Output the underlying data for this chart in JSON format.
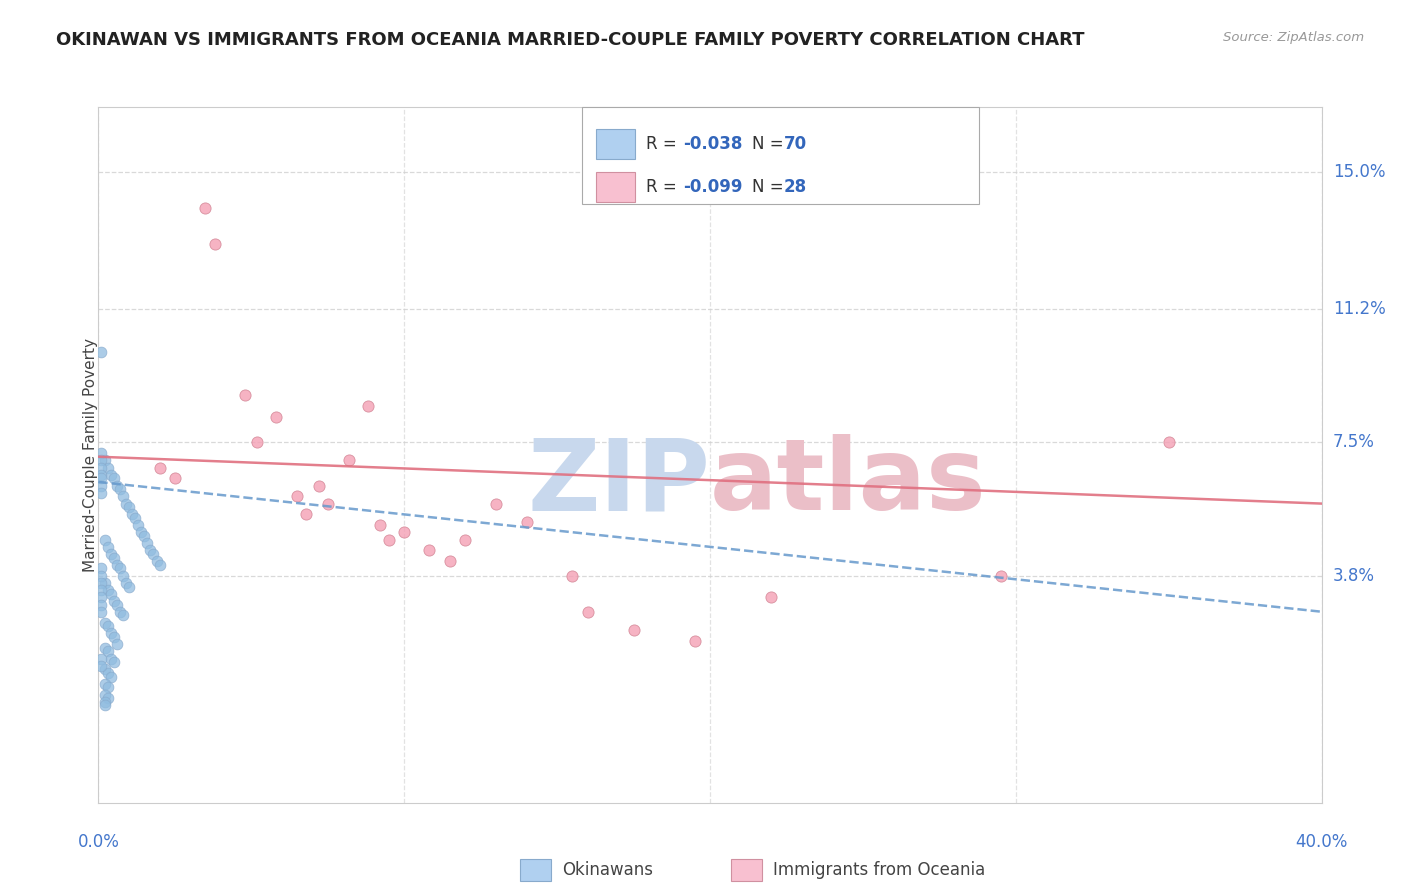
{
  "title": "OKINAWAN VS IMMIGRANTS FROM OCEANIA MARRIED-COUPLE FAMILY POVERTY CORRELATION CHART",
  "source": "Source: ZipAtlas.com",
  "ylabel": "Married-Couple Family Poverty",
  "xmin": 0.0,
  "xmax": 0.4,
  "ymin": -0.025,
  "ymax": 0.168,
  "ytick_vals": [
    0.038,
    0.075,
    0.112,
    0.15
  ],
  "ytick_labels": [
    "3.8%",
    "7.5%",
    "11.2%",
    "15.0%"
  ],
  "legend_r1": "R = -0.038",
  "legend_n1": "N = 70",
  "legend_r2": "R = -0.099",
  "legend_n2": "N = 28",
  "legend_label1": "Okinawans",
  "legend_label2": "Immigrants from Oceania",
  "blue_color": "#90bce0",
  "pink_color": "#f4a0b5",
  "blue_face": "#b0d0f0",
  "pink_face": "#f8c0d0",
  "blue_line_color": "#6699cc",
  "pink_line_color": "#e07080",
  "label_color": "#4477cc",
  "r_color": "#3366bb",
  "n_color": "#3366bb",
  "watermark_zip_color": "#c8d8ed",
  "watermark_atlas_color": "#ebbfc8",
  "grid_color": "#d0d0d0",
  "title_color": "#222222",
  "source_color": "#999999",
  "blue_x": [
    0.002,
    0.003,
    0.004,
    0.005,
    0.006,
    0.007,
    0.008,
    0.009,
    0.01,
    0.011,
    0.012,
    0.013,
    0.014,
    0.015,
    0.016,
    0.017,
    0.018,
    0.019,
    0.02,
    0.002,
    0.003,
    0.004,
    0.005,
    0.006,
    0.007,
    0.008,
    0.009,
    0.01,
    0.002,
    0.003,
    0.004,
    0.005,
    0.006,
    0.007,
    0.008,
    0.002,
    0.003,
    0.004,
    0.005,
    0.006,
    0.002,
    0.003,
    0.004,
    0.005,
    0.002,
    0.003,
    0.004,
    0.002,
    0.003,
    0.002,
    0.003,
    0.002,
    0.002,
    0.001,
    0.001,
    0.001,
    0.001,
    0.001,
    0.001,
    0.001,
    0.001,
    0.001,
    0.001,
    0.001,
    0.001,
    0.001,
    0.001,
    0.001,
    0.001,
    0.001
  ],
  "blue_y": [
    0.07,
    0.068,
    0.066,
    0.065,
    0.063,
    0.062,
    0.06,
    0.058,
    0.057,
    0.055,
    0.054,
    0.052,
    0.05,
    0.049,
    0.047,
    0.045,
    0.044,
    0.042,
    0.041,
    0.048,
    0.046,
    0.044,
    0.043,
    0.041,
    0.04,
    0.038,
    0.036,
    0.035,
    0.036,
    0.034,
    0.033,
    0.031,
    0.03,
    0.028,
    0.027,
    0.025,
    0.024,
    0.022,
    0.021,
    0.019,
    0.018,
    0.017,
    0.015,
    0.014,
    0.012,
    0.011,
    0.01,
    0.008,
    0.007,
    0.005,
    0.004,
    0.003,
    0.002,
    0.072,
    0.07,
    0.068,
    0.066,
    0.065,
    0.063,
    0.061,
    0.04,
    0.038,
    0.036,
    0.034,
    0.032,
    0.03,
    0.028,
    0.015,
    0.013,
    0.1
  ],
  "pink_x": [
    0.02,
    0.025,
    0.035,
    0.038,
    0.048,
    0.052,
    0.058,
    0.065,
    0.068,
    0.072,
    0.075,
    0.082,
    0.088,
    0.092,
    0.095,
    0.1,
    0.108,
    0.115,
    0.12,
    0.13,
    0.14,
    0.155,
    0.16,
    0.175,
    0.195,
    0.22,
    0.295,
    0.35
  ],
  "pink_y": [
    0.068,
    0.065,
    0.14,
    0.13,
    0.088,
    0.075,
    0.082,
    0.06,
    0.055,
    0.063,
    0.058,
    0.07,
    0.085,
    0.052,
    0.048,
    0.05,
    0.045,
    0.042,
    0.048,
    0.058,
    0.053,
    0.038,
    0.028,
    0.023,
    0.02,
    0.032,
    0.038,
    0.075
  ],
  "blue_trend_x": [
    0.0,
    0.4
  ],
  "blue_trend_y": [
    0.064,
    0.028
  ],
  "pink_trend_x": [
    0.0,
    0.4
  ],
  "pink_trend_y": [
    0.071,
    0.058
  ]
}
